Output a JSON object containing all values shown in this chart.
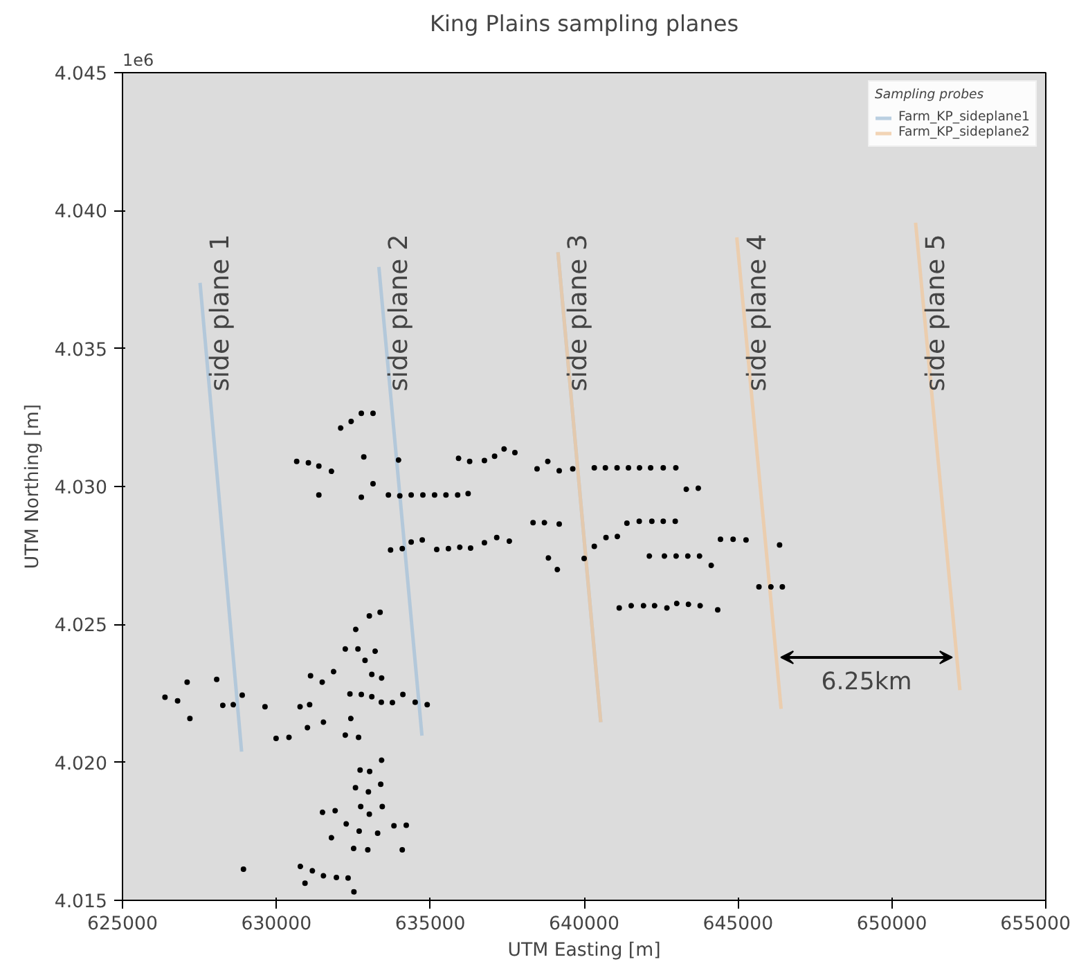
{
  "chart_data": {
    "type": "scatter",
    "title": "King Plains sampling planes",
    "xlabel": "UTM Easting [m]",
    "ylabel": "UTM Northing [m]",
    "legend_title": "Sampling probes",
    "legend": "top right",
    "grid": false,
    "xlim": [
      625000,
      655000
    ],
    "xticks": [
      625000,
      630000,
      635000,
      640000,
      645000,
      650000,
      655000
    ],
    "ylim": [
      4.015,
      4.045
    ],
    "yticks": [
      {
        "value": 4.015,
        "label": "4.015"
      },
      {
        "value": 4.02,
        "label": "4.020"
      },
      {
        "value": 4.025,
        "label": "4.025"
      },
      {
        "value": 4.03,
        "label": "4.030"
      },
      {
        "value": 4.035,
        "label": "4.035"
      },
      {
        "value": 4.04,
        "label": "4.040"
      },
      {
        "value": 4.045,
        "label": "4.045"
      }
    ],
    "series": [
      {
        "name": "Farm_KP_sideplane1",
        "type": "line",
        "marker": "none",
        "color": "#a9c3d9",
        "x": [
          627520,
          628870,
          null,
          633330,
          634730,
          null,
          639150,
          640540
        ],
        "values": [
          4.03738,
          4.02039,
          null,
          4.03796,
          4.02097,
          null,
          4.03849,
          4.02146
        ]
      },
      {
        "name": "Farm_KP_sideplane2",
        "type": "line",
        "marker": "none",
        "color": "#efc9a3",
        "x": [
          639150,
          640540,
          null,
          644960,
          646400,
          null,
          650770,
          652210
        ],
        "values": [
          4.03849,
          4.02146,
          null,
          4.03903,
          4.02194,
          null,
          4.03956,
          4.02262
        ]
      },
      {
        "marker": "circle",
        "color": "#000000",
        "x": [
          632090,
          632430,
          632760,
          633140,
          630660,
          631040,
          631380,
          631790,
          632840,
          633970,
          635920,
          633140,
          631380,
          632760,
          633640,
          634010,
          634380,
          634760,
          635140,
          635510,
          635890,
          633710,
          634090,
          634380,
          634740,
          635210,
          635590,
          635960,
          633370,
          633020,
          632580,
          632240,
          632650,
          633210,
          636280,
          636760,
          637090,
          637400,
          637750,
          638470,
          638820,
          639190,
          639630,
          640330,
          640690,
          641070,
          641440,
          641800,
          642160,
          642570,
          642980,
          643320,
          643710,
          636230,
          638340,
          638710,
          639190,
          641390,
          641790,
          642200,
          642570,
          642960,
          640710,
          641080,
          640330,
          636310,
          636760,
          637160,
          637570,
          638840,
          639130,
          640000,
          642120,
          642610,
          642990,
          643370,
          643750,
          644130,
          644430,
          644840,
          645260,
          646350,
          645680,
          646070,
          646440,
          641140,
          641530,
          641930,
          642290,
          642690,
          643010,
          643390,
          643770,
          644340,
          632880,
          626380,
          626790,
          627100,
          627190,
          628060,
          628260,
          628600,
          628890,
          629630,
          629990,
          630410,
          630770,
          631080,
          631010,
          631110,
          631490,
          631860,
          631530,
          632240,
          632670,
          632420,
          632390,
          632760,
          633100,
          633100,
          633420,
          633410,
          633770,
          634110,
          634510,
          634900,
          633420,
          632720,
          633030,
          632570,
          632990,
          633390,
          632740,
          633020,
          633440,
          631500,
          631910,
          632270,
          632690,
          633290,
          633820,
          634220,
          631790,
          632510,
          632970,
          634090,
          628930,
          630780,
          631170,
          630930,
          631530,
          631950,
          632330,
          632520
        ],
        "values": [
          4.03212,
          4.03236,
          4.03265,
          4.03265,
          4.03091,
          4.03086,
          4.03074,
          4.03055,
          4.03107,
          4.03096,
          4.03102,
          4.0301,
          4.02969,
          4.02961,
          4.02969,
          4.02966,
          4.02969,
          4.02969,
          4.02969,
          4.02969,
          4.02969,
          4.0277,
          4.02775,
          4.02799,
          4.02806,
          4.02772,
          4.02775,
          4.0278,
          4.02544,
          4.02531,
          4.02482,
          4.02411,
          4.02411,
          4.02403,
          4.03091,
          4.03094,
          4.0311,
          4.03136,
          4.03123,
          4.03064,
          4.03091,
          4.03057,
          4.03064,
          4.03068,
          4.03068,
          4.03068,
          4.03068,
          4.03068,
          4.03068,
          4.03068,
          4.03068,
          4.0299,
          4.02994,
          4.02974,
          4.02869,
          4.02869,
          4.02864,
          4.02867,
          4.02874,
          4.02874,
          4.02874,
          4.02874,
          4.02815,
          4.02819,
          4.02783,
          4.02777,
          4.02796,
          4.02815,
          4.02802,
          4.02741,
          4.02699,
          4.02739,
          4.02748,
          4.02748,
          4.02748,
          4.02748,
          4.02748,
          4.02714,
          4.02809,
          4.02809,
          4.02806,
          4.02788,
          4.02636,
          4.02636,
          4.02636,
          4.0256,
          4.02568,
          4.02568,
          4.02568,
          4.0256,
          4.02576,
          4.02573,
          4.02568,
          4.02553,
          4.0237,
          4.02236,
          4.02223,
          4.02291,
          4.02159,
          4.02301,
          4.02207,
          4.02209,
          4.02244,
          4.02202,
          4.02087,
          4.02091,
          4.02202,
          4.02209,
          4.02126,
          4.02314,
          4.02291,
          4.02329,
          4.02146,
          4.02099,
          4.02091,
          4.02159,
          4.02248,
          4.02246,
          4.02238,
          4.02319,
          4.02306,
          4.02218,
          4.02217,
          4.02246,
          4.02218,
          4.02209,
          4.02008,
          4.01972,
          4.01967,
          4.01908,
          4.01893,
          4.01921,
          4.0184,
          4.01812,
          4.0184,
          4.01819,
          4.01825,
          4.01777,
          4.01751,
          4.01743,
          4.0177,
          4.01772,
          4.01727,
          4.01688,
          4.01683,
          4.01683,
          4.01613,
          4.01623,
          4.01607,
          4.01562,
          4.01589,
          4.01583,
          4.01581,
          4.01531
        ]
      }
    ],
    "annotations": [
      "1e6",
      "side plane 1",
      "side plane 2",
      "side plane 3",
      "side plane 4",
      "side plane 5",
      "6.25km"
    ]
  }
}
